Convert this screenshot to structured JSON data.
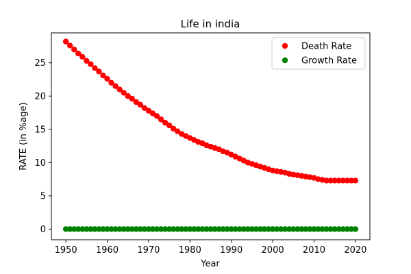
{
  "chart_data": {
    "type": "scatter",
    "title": "Life in india",
    "xlabel": "Year",
    "ylabel": "RATE (in %age)",
    "xlim": [
      1946.5,
      2023.5
    ],
    "ylim": [
      -1.6,
      29.5
    ],
    "xticks": [
      1950,
      1960,
      1970,
      1980,
      1990,
      2000,
      2010,
      2020
    ],
    "yticks": [
      0,
      5,
      10,
      15,
      20,
      25
    ],
    "grid": false,
    "legend_position": "top-right",
    "x": [
      1950,
      1951,
      1952,
      1953,
      1954,
      1955,
      1956,
      1957,
      1958,
      1959,
      1960,
      1961,
      1962,
      1963,
      1964,
      1965,
      1966,
      1967,
      1968,
      1969,
      1970,
      1971,
      1972,
      1973,
      1974,
      1975,
      1976,
      1977,
      1978,
      1979,
      1980,
      1981,
      1982,
      1983,
      1984,
      1985,
      1986,
      1987,
      1988,
      1989,
      1990,
      1991,
      1992,
      1993,
      1994,
      1995,
      1996,
      1997,
      1998,
      1999,
      2000,
      2001,
      2002,
      2003,
      2004,
      2005,
      2006,
      2007,
      2008,
      2009,
      2010,
      2011,
      2012,
      2013,
      2014,
      2015,
      2016,
      2017,
      2018,
      2019,
      2020
    ],
    "series": [
      {
        "name": "Death Rate",
        "color": "#ff0000",
        "values": [
          28.2,
          27.6,
          27.0,
          26.4,
          25.9,
          25.3,
          24.8,
          24.2,
          23.7,
          23.1,
          22.6,
          22.0,
          21.5,
          21.0,
          20.5,
          20.0,
          19.6,
          19.1,
          18.7,
          18.2,
          17.8,
          17.4,
          17.0,
          16.5,
          16.0,
          15.6,
          15.1,
          14.7,
          14.3,
          14.0,
          13.7,
          13.4,
          13.1,
          12.9,
          12.6,
          12.4,
          12.2,
          12.0,
          11.7,
          11.5,
          11.2,
          10.9,
          10.6,
          10.3,
          10.0,
          9.8,
          9.6,
          9.4,
          9.2,
          9.0,
          8.8,
          8.7,
          8.6,
          8.5,
          8.3,
          8.2,
          8.1,
          8.0,
          7.9,
          7.8,
          7.7,
          7.5,
          7.4,
          7.3,
          7.3,
          7.3,
          7.3,
          7.3,
          7.3,
          7.3,
          7.3
        ]
      },
      {
        "name": "Growth Rate",
        "color": "#008000",
        "values": [
          0,
          0,
          0,
          0,
          0,
          0,
          0,
          0,
          0,
          0,
          0,
          0,
          0,
          0,
          0,
          0,
          0,
          0,
          0,
          0,
          0,
          0,
          0,
          0,
          0,
          0,
          0,
          0,
          0,
          0,
          0,
          0,
          0,
          0,
          0,
          0,
          0,
          0,
          0,
          0,
          0,
          0,
          0,
          0,
          0,
          0,
          0,
          0,
          0,
          0,
          0,
          0,
          0,
          0,
          0,
          0,
          0,
          0,
          0,
          0,
          0,
          0,
          0,
          0,
          0,
          0,
          0,
          0,
          0,
          0,
          0
        ]
      }
    ]
  }
}
